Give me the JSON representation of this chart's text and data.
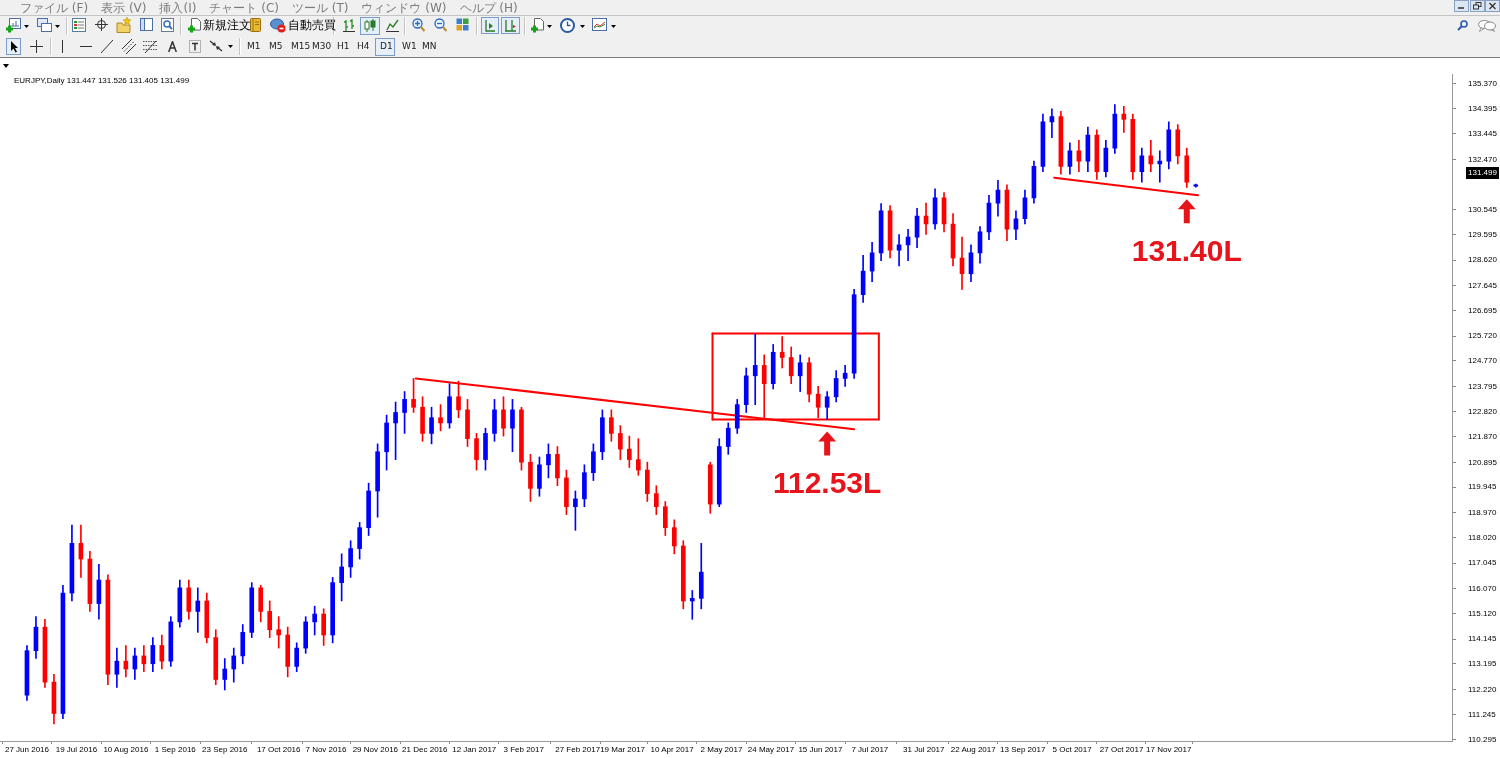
{
  "chart_data": {
    "type": "candlestick",
    "title": "EURJPY,Daily 131.447 131.526 131.405 131.499",
    "x": [
      "2016-06-27",
      "2016-07-01",
      "2016-07-05",
      "2016-07-09",
      "2016-07-13",
      "2016-07-17",
      "2016-07-21",
      "2016-07-25",
      "2016-07-29",
      "2016-08-02",
      "2016-08-06",
      "2016-08-10",
      "2016-08-14",
      "2016-08-18",
      "2016-08-22",
      "2016-08-26",
      "2016-08-30",
      "2016-09-03",
      "2016-09-07",
      "2016-09-11",
      "2016-09-15",
      "2016-09-19",
      "2016-09-23",
      "2016-09-27",
      "2016-10-01",
      "2016-10-05",
      "2016-10-09",
      "2016-10-13",
      "2016-10-17",
      "2016-10-21",
      "2016-10-25",
      "2016-10-29",
      "2016-11-02",
      "2016-11-06",
      "2016-11-10",
      "2016-11-14",
      "2016-11-18",
      "2016-11-22",
      "2016-11-26",
      "2016-11-30",
      "2016-12-04",
      "2016-12-08",
      "2016-12-12",
      "2016-12-16",
      "2016-12-20",
      "2016-12-24",
      "2016-12-28",
      "2017-01-01",
      "2017-01-05",
      "2017-01-09",
      "2017-01-13",
      "2017-01-17",
      "2017-01-21",
      "2017-01-25",
      "2017-01-29",
      "2017-02-02",
      "2017-02-06",
      "2017-02-10",
      "2017-02-14",
      "2017-02-18",
      "2017-02-22",
      "2017-02-26",
      "2017-03-02",
      "2017-03-06",
      "2017-03-10",
      "2017-03-14",
      "2017-03-18",
      "2017-03-22",
      "2017-03-26",
      "2017-03-30",
      "2017-04-03",
      "2017-04-07",
      "2017-04-11",
      "2017-04-15",
      "2017-04-19",
      "2017-04-23",
      "2017-04-27",
      "2017-05-01",
      "2017-05-05",
      "2017-05-09",
      "2017-05-13",
      "2017-05-17",
      "2017-05-21",
      "2017-05-25",
      "2017-05-29",
      "2017-06-02",
      "2017-06-06",
      "2017-06-10",
      "2017-06-14",
      "2017-06-18",
      "2017-06-22",
      "2017-06-26",
      "2017-06-30",
      "2017-07-04",
      "2017-07-08",
      "2017-07-12",
      "2017-07-16",
      "2017-07-20",
      "2017-07-24",
      "2017-07-28",
      "2017-08-01",
      "2017-08-05",
      "2017-08-09",
      "2017-08-13",
      "2017-08-17",
      "2017-08-21",
      "2017-08-25",
      "2017-08-29",
      "2017-09-02",
      "2017-09-06",
      "2017-09-10",
      "2017-09-14",
      "2017-09-18",
      "2017-09-22",
      "2017-09-26",
      "2017-09-30",
      "2017-10-04",
      "2017-10-08",
      "2017-10-12",
      "2017-10-16",
      "2017-10-20",
      "2017-10-24",
      "2017-10-28",
      "2017-11-01",
      "2017-11-05",
      "2017-11-09",
      "2017-11-13",
      "2017-11-17",
      "2017-11-21",
      "2017-11-25",
      "2017-11-29"
    ],
    "ohlc": [
      [
        112.0,
        113.9,
        111.8,
        113.7
      ],
      [
        113.7,
        115.0,
        113.4,
        114.6
      ],
      [
        114.6,
        114.9,
        112.3,
        112.5
      ],
      [
        112.5,
        112.8,
        110.9,
        111.3
      ],
      [
        111.3,
        116.2,
        111.1,
        115.9
      ],
      [
        115.9,
        118.5,
        115.6,
        117.8
      ],
      [
        117.8,
        118.5,
        116.5,
        117.2
      ],
      [
        117.2,
        117.5,
        115.2,
        115.5
      ],
      [
        115.5,
        117.0,
        114.9,
        116.4
      ],
      [
        116.4,
        116.6,
        112.4,
        112.8
      ],
      [
        112.8,
        113.8,
        112.3,
        113.3
      ],
      [
        113.3,
        113.9,
        112.7,
        113.0
      ],
      [
        113.0,
        113.8,
        112.6,
        113.5
      ],
      [
        113.5,
        113.9,
        112.9,
        113.2
      ],
      [
        113.2,
        114.2,
        112.9,
        113.9
      ],
      [
        113.9,
        114.3,
        113.0,
        113.3
      ],
      [
        113.3,
        115.0,
        113.1,
        114.8
      ],
      [
        114.8,
        116.4,
        114.6,
        116.1
      ],
      [
        116.1,
        116.4,
        114.9,
        115.2
      ],
      [
        115.2,
        116.1,
        114.4,
        115.6
      ],
      [
        115.6,
        115.9,
        114.0,
        114.2
      ],
      [
        114.2,
        114.5,
        112.4,
        112.6
      ],
      [
        112.6,
        113.4,
        112.2,
        113.0
      ],
      [
        113.0,
        113.8,
        112.5,
        113.5
      ],
      [
        113.5,
        114.7,
        113.2,
        114.4
      ],
      [
        114.4,
        116.3,
        114.2,
        116.1
      ],
      [
        116.1,
        116.2,
        114.8,
        115.2
      ],
      [
        115.2,
        115.6,
        114.2,
        114.5
      ],
      [
        114.5,
        115.0,
        113.8,
        114.3
      ],
      [
        114.3,
        114.6,
        112.7,
        113.1
      ],
      [
        113.1,
        114.0,
        112.9,
        113.8
      ],
      [
        113.8,
        115.0,
        113.6,
        114.8
      ],
      [
        114.8,
        115.4,
        114.3,
        115.1
      ],
      [
        115.1,
        115.3,
        113.9,
        114.3
      ],
      [
        114.3,
        116.5,
        114.0,
        116.3
      ],
      [
        116.3,
        117.4,
        115.6,
        116.9
      ],
      [
        116.9,
        117.9,
        116.5,
        117.6
      ],
      [
        117.6,
        118.6,
        117.2,
        118.4
      ],
      [
        118.4,
        120.1,
        118.1,
        119.8
      ],
      [
        119.8,
        121.6,
        118.8,
        121.3
      ],
      [
        121.3,
        122.7,
        120.6,
        122.4
      ],
      [
        122.4,
        123.2,
        121.0,
        122.8
      ],
      [
        122.8,
        123.6,
        122.0,
        123.3
      ],
      [
        123.3,
        124.1,
        122.8,
        123.0
      ],
      [
        123.0,
        123.4,
        121.7,
        122.0
      ],
      [
        122.0,
        123.0,
        121.6,
        122.6
      ],
      [
        122.6,
        123.1,
        122.1,
        122.4
      ],
      [
        122.4,
        123.9,
        122.2,
        123.4
      ],
      [
        123.4,
        124.0,
        122.6,
        122.9
      ],
      [
        122.9,
        123.3,
        121.5,
        121.8
      ],
      [
        121.8,
        122.0,
        120.6,
        121.0
      ],
      [
        121.0,
        122.2,
        120.6,
        122.0
      ],
      [
        122.0,
        123.3,
        121.7,
        122.9
      ],
      [
        122.9,
        123.4,
        121.9,
        122.2
      ],
      [
        122.2,
        123.3,
        121.3,
        122.9
      ],
      [
        122.9,
        123.0,
        120.6,
        120.9
      ],
      [
        120.9,
        121.2,
        119.4,
        119.9
      ],
      [
        119.9,
        121.1,
        119.6,
        120.8
      ],
      [
        120.8,
        121.6,
        120.3,
        121.2
      ],
      [
        121.2,
        121.5,
        120.0,
        120.3
      ],
      [
        120.3,
        120.6,
        118.9,
        119.2
      ],
      [
        119.2,
        119.8,
        118.3,
        119.5
      ],
      [
        119.5,
        120.8,
        119.2,
        120.5
      ],
      [
        120.5,
        121.6,
        120.2,
        121.3
      ],
      [
        121.3,
        122.9,
        121.0,
        122.6
      ],
      [
        122.6,
        122.9,
        121.7,
        122.0
      ],
      [
        122.0,
        122.3,
        121.0,
        121.4
      ],
      [
        121.4,
        121.9,
        120.7,
        121.0
      ],
      [
        121.0,
        121.8,
        120.4,
        120.6
      ],
      [
        120.6,
        120.9,
        119.4,
        119.7
      ],
      [
        119.7,
        120.0,
        118.9,
        119.2
      ],
      [
        119.2,
        119.4,
        118.1,
        118.4
      ],
      [
        118.4,
        118.7,
        117.4,
        117.7
      ],
      [
        117.7,
        117.9,
        115.3,
        115.6
      ],
      [
        115.6,
        116.0,
        114.9,
        115.7
      ],
      [
        115.7,
        117.8,
        115.3,
        116.7
      ],
      [
        120.8,
        120.9,
        118.95,
        119.3
      ],
      [
        119.3,
        121.8,
        119.2,
        121.5
      ],
      [
        121.5,
        122.4,
        121.2,
        122.2
      ],
      [
        122.2,
        123.3,
        122.0,
        123.1
      ],
      [
        123.1,
        124.5,
        122.8,
        124.2
      ],
      [
        124.2,
        125.8,
        123.1,
        124.6
      ],
      [
        124.6,
        125.0,
        122.6,
        123.9
      ],
      [
        123.9,
        125.4,
        123.7,
        125.1
      ],
      [
        125.1,
        125.7,
        124.5,
        124.9
      ],
      [
        124.9,
        125.3,
        123.9,
        124.2
      ],
      [
        124.2,
        125.0,
        123.6,
        124.7
      ],
      [
        124.7,
        124.9,
        123.2,
        123.5
      ],
      [
        123.5,
        123.8,
        122.6,
        123.0
      ],
      [
        123.0,
        123.6,
        122.53,
        123.4
      ],
      [
        123.4,
        124.4,
        123.2,
        124.1
      ],
      [
        124.1,
        124.6,
        123.8,
        124.3
      ],
      [
        124.3,
        127.5,
        124.1,
        127.3
      ],
      [
        127.3,
        128.8,
        127.0,
        128.2
      ],
      [
        128.2,
        129.3,
        127.8,
        128.9
      ],
      [
        128.9,
        130.78,
        128.6,
        130.5
      ],
      [
        130.5,
        130.7,
        128.7,
        129.0
      ],
      [
        129.0,
        129.6,
        128.4,
        129.2
      ],
      [
        129.2,
        129.8,
        128.6,
        129.5
      ],
      [
        129.5,
        130.6,
        129.1,
        130.3
      ],
      [
        130.3,
        130.8,
        129.6,
        130.0
      ],
      [
        130.0,
        131.34,
        129.8,
        131.0
      ],
      [
        131.0,
        131.2,
        129.7,
        130.0
      ],
      [
        130.0,
        130.4,
        128.4,
        128.7
      ],
      [
        128.7,
        129.5,
        127.5,
        128.1
      ],
      [
        128.1,
        129.2,
        127.8,
        128.9
      ],
      [
        128.9,
        129.9,
        128.5,
        129.7
      ],
      [
        129.7,
        131.1,
        129.4,
        130.8
      ],
      [
        130.8,
        131.67,
        130.3,
        131.3
      ],
      [
        131.3,
        131.5,
        129.36,
        129.8
      ],
      [
        129.8,
        130.5,
        129.4,
        130.2
      ],
      [
        130.2,
        131.3,
        130.0,
        131.0
      ],
      [
        131.0,
        132.4,
        130.8,
        132.2
      ],
      [
        132.2,
        134.2,
        132.0,
        133.9
      ],
      [
        133.9,
        134.4,
        133.3,
        134.1
      ],
      [
        134.1,
        134.3,
        131.9,
        132.2
      ],
      [
        132.2,
        133.1,
        131.9,
        132.8
      ],
      [
        132.8,
        133.2,
        132.0,
        132.4
      ],
      [
        132.4,
        133.7,
        132.0,
        133.4
      ],
      [
        133.4,
        133.6,
        131.7,
        132.0
      ],
      [
        132.0,
        133.2,
        131.8,
        132.9
      ],
      [
        132.9,
        134.56,
        132.7,
        134.2
      ],
      [
        134.2,
        134.5,
        133.5,
        134.0
      ],
      [
        134.0,
        134.2,
        131.7,
        132.0
      ],
      [
        132.0,
        132.9,
        131.6,
        132.6
      ],
      [
        132.6,
        133.2,
        132.0,
        132.3
      ],
      [
        132.3,
        132.8,
        131.6,
        132.4
      ],
      [
        132.4,
        133.9,
        132.1,
        133.6
      ],
      [
        133.6,
        133.8,
        132.3,
        132.6
      ],
      [
        132.6,
        132.9,
        131.4,
        131.6
      ],
      [
        131.447,
        131.526,
        131.405,
        131.499
      ]
    ],
    "colors": [
      "#0000ff",
      "#0000ff",
      "#ff0000",
      "#ff0000",
      "#0000ff",
      "#0000ff",
      "#ff0000",
      "#ff0000",
      "#0000ff",
      "#ff0000",
      "#0000ff",
      "#ff0000",
      "#0000ff",
      "#ff0000",
      "#0000ff",
      "#ff0000",
      "#0000ff",
      "#0000ff",
      "#ff0000",
      "#0000ff",
      "#ff0000",
      "#ff0000",
      "#0000ff",
      "#0000ff",
      "#0000ff",
      "#0000ff",
      "#ff0000",
      "#ff0000",
      "#ff0000",
      "#ff0000",
      "#0000ff",
      "#0000ff",
      "#0000ff",
      "#ff0000",
      "#0000ff",
      "#0000ff",
      "#0000ff",
      "#0000ff",
      "#0000ff",
      "#0000ff",
      "#0000ff",
      "#0000ff",
      "#0000ff",
      "#ff0000",
      "#ff0000",
      "#0000ff",
      "#ff0000",
      "#0000ff",
      "#ff0000",
      "#ff0000",
      "#ff0000",
      "#0000ff",
      "#0000ff",
      "#ff0000",
      "#0000ff",
      "#ff0000",
      "#ff0000",
      "#0000ff",
      "#0000ff",
      "#ff0000",
      "#ff0000",
      "#0000ff",
      "#0000ff",
      "#0000ff",
      "#0000ff",
      "#ff0000",
      "#ff0000",
      "#ff0000",
      "#ff0000",
      "#ff0000",
      "#ff0000",
      "#ff0000",
      "#ff0000",
      "#ff0000",
      "#0000ff",
      "#0000ff",
      "#ff0000",
      "#0000ff",
      "#0000ff",
      "#0000ff",
      "#0000ff",
      "#0000ff",
      "#ff0000",
      "#0000ff",
      "#ff0000",
      "#ff0000",
      "#0000ff",
      "#ff0000",
      "#ff0000",
      "#0000ff",
      "#0000ff",
      "#0000ff",
      "#0000ff",
      "#0000ff",
      "#0000ff",
      "#0000ff",
      "#ff0000",
      "#0000ff",
      "#0000ff",
      "#0000ff",
      "#ff0000",
      "#0000ff",
      "#ff0000",
      "#ff0000",
      "#ff0000",
      "#0000ff",
      "#0000ff",
      "#0000ff",
      "#0000ff",
      "#ff0000",
      "#0000ff",
      "#0000ff",
      "#0000ff",
      "#0000ff",
      "#0000ff",
      "#ff0000",
      "#0000ff",
      "#ff0000",
      "#0000ff",
      "#ff0000",
      "#0000ff",
      "#0000ff",
      "#ff0000",
      "#ff0000",
      "#0000ff",
      "#ff0000",
      "#0000ff",
      "#0000ff",
      "#ff0000",
      "#ff0000",
      "#0000ff"
    ],
    "series": [
      {
        "type": "line",
        "color": "#ff0000",
        "x": [
          "2016-12-17",
          "2017-06-30"
        ],
        "values": [
          124.1,
          122.16
        ]
      },
      {
        "type": "line",
        "color": "#ff0000",
        "x": [
          "2017-04-28",
          "2017-07-11"
        ],
        "values": [
          125.82,
          125.82
        ]
      },
      {
        "type": "line",
        "color": "#ff0000",
        "x": [
          "2017-04-28",
          "2017-07-11"
        ],
        "values": [
          122.53,
          122.53
        ]
      },
      {
        "type": "line",
        "color": "#ff0000",
        "x": [
          "2017-04-28",
          "2017-04-28"
        ],
        "values": [
          122.53,
          125.82
        ]
      },
      {
        "type": "line",
        "color": "#ff0000",
        "x": [
          "2017-07-11",
          "2017-07-11"
        ],
        "values": [
          122.53,
          125.82
        ]
      },
      {
        "type": "line",
        "color": "#ff0000",
        "x": [
          "2017-09-27",
          "2017-11-30"
        ],
        "values": [
          131.77,
          131.1
        ]
      }
    ],
    "xlim": [
      "2016-06-15",
      "2018-03-23"
    ],
    "xticks": [
      {
        "value": "2016-06-27",
        "label": "27 Jun 2016"
      },
      {
        "value": "2016-07-19",
        "label": "19 Jul 2016"
      },
      {
        "value": "2016-08-10",
        "label": "10 Aug 2016"
      },
      {
        "value": "2016-09-01",
        "label": "1 Sep 2016"
      },
      {
        "value": "2016-09-23",
        "label": "23 Sep 2016"
      },
      {
        "value": "2016-10-17",
        "label": "17 Oct 2016"
      },
      {
        "value": "2016-11-07",
        "label": "7 Nov 2016"
      },
      {
        "value": "2016-11-29",
        "label": "29 Nov 2016"
      },
      {
        "value": "2016-12-21",
        "label": "21 Dec 2016"
      },
      {
        "value": "2017-01-12",
        "label": "12 Jan 2017"
      },
      {
        "value": "2017-02-03",
        "label": "3 Feb 2017"
      },
      {
        "value": "2017-02-27",
        "label": "27 Feb 2017"
      },
      {
        "value": "2017-03-19",
        "label": "19 Mar 2017"
      },
      {
        "value": "2017-04-10",
        "label": "10 Apr 2017"
      },
      {
        "value": "2017-05-02",
        "label": "2 May 2017"
      },
      {
        "value": "2017-05-24",
        "label": "24 May 2017"
      },
      {
        "value": "2017-06-15",
        "label": "15 Jun 2017"
      },
      {
        "value": "2017-07-07",
        "label": "7 Jul 2017"
      },
      {
        "value": "2017-07-31",
        "label": "31 Jul 2017"
      },
      {
        "value": "2017-08-22",
        "label": "22 Aug 2017"
      },
      {
        "value": "2017-09-13",
        "label": "13 Sep 2017"
      },
      {
        "value": "2017-10-05",
        "label": "5 Oct 2017"
      },
      {
        "value": "2017-10-27",
        "label": "27 Oct 2017"
      },
      {
        "value": "2017-11-17",
        "label": "17 Nov 2017"
      }
    ],
    "ylim": [
      110.25,
      135.7
    ],
    "yticks": [
      {
        "value": 135.37,
        "label": "135.370"
      },
      134.395,
      133.445,
      {
        "value": 132.47,
        "label": "132.470"
      },
      130.545,
      129.595,
      {
        "value": 128.62,
        "label": "128.620"
      },
      127.645,
      126.695,
      {
        "value": 125.72,
        "label": "125.720"
      },
      {
        "value": 124.77,
        "label": "124.770"
      },
      123.795,
      {
        "value": 122.82,
        "label": "122.820"
      },
      {
        "value": 121.87,
        "label": "121.870"
      },
      120.895,
      119.945,
      {
        "value": 118.97,
        "label": "118.970"
      },
      {
        "value": 118.02,
        "label": "118.020"
      },
      117.045,
      {
        "value": 116.07,
        "label": "116.070"
      },
      {
        "value": 115.12,
        "label": "115.120"
      },
      114.145,
      113.195,
      {
        "value": 112.22,
        "label": "112.220"
      },
      111.245,
      110.295
    ],
    "annotations": [
      "ファイル (F)",
      "表示 (V)",
      "挿入(I)",
      "チャート (C)",
      "ツール (T)",
      "ウィンドウ (W)",
      "ヘルプ (H)",
      "新規注文",
      "自動売買",
      "M1",
      "M5",
      "M15",
      "M30",
      "H1",
      "H4",
      "D1",
      "W1",
      "MN",
      "131.499",
      {
        "text": "112.53L",
        "x": "2017-06-18",
        "y": 122.53
      },
      {
        "text": "131.40L",
        "x": "2017-11-25",
        "y": 131.4
      }
    ]
  }
}
